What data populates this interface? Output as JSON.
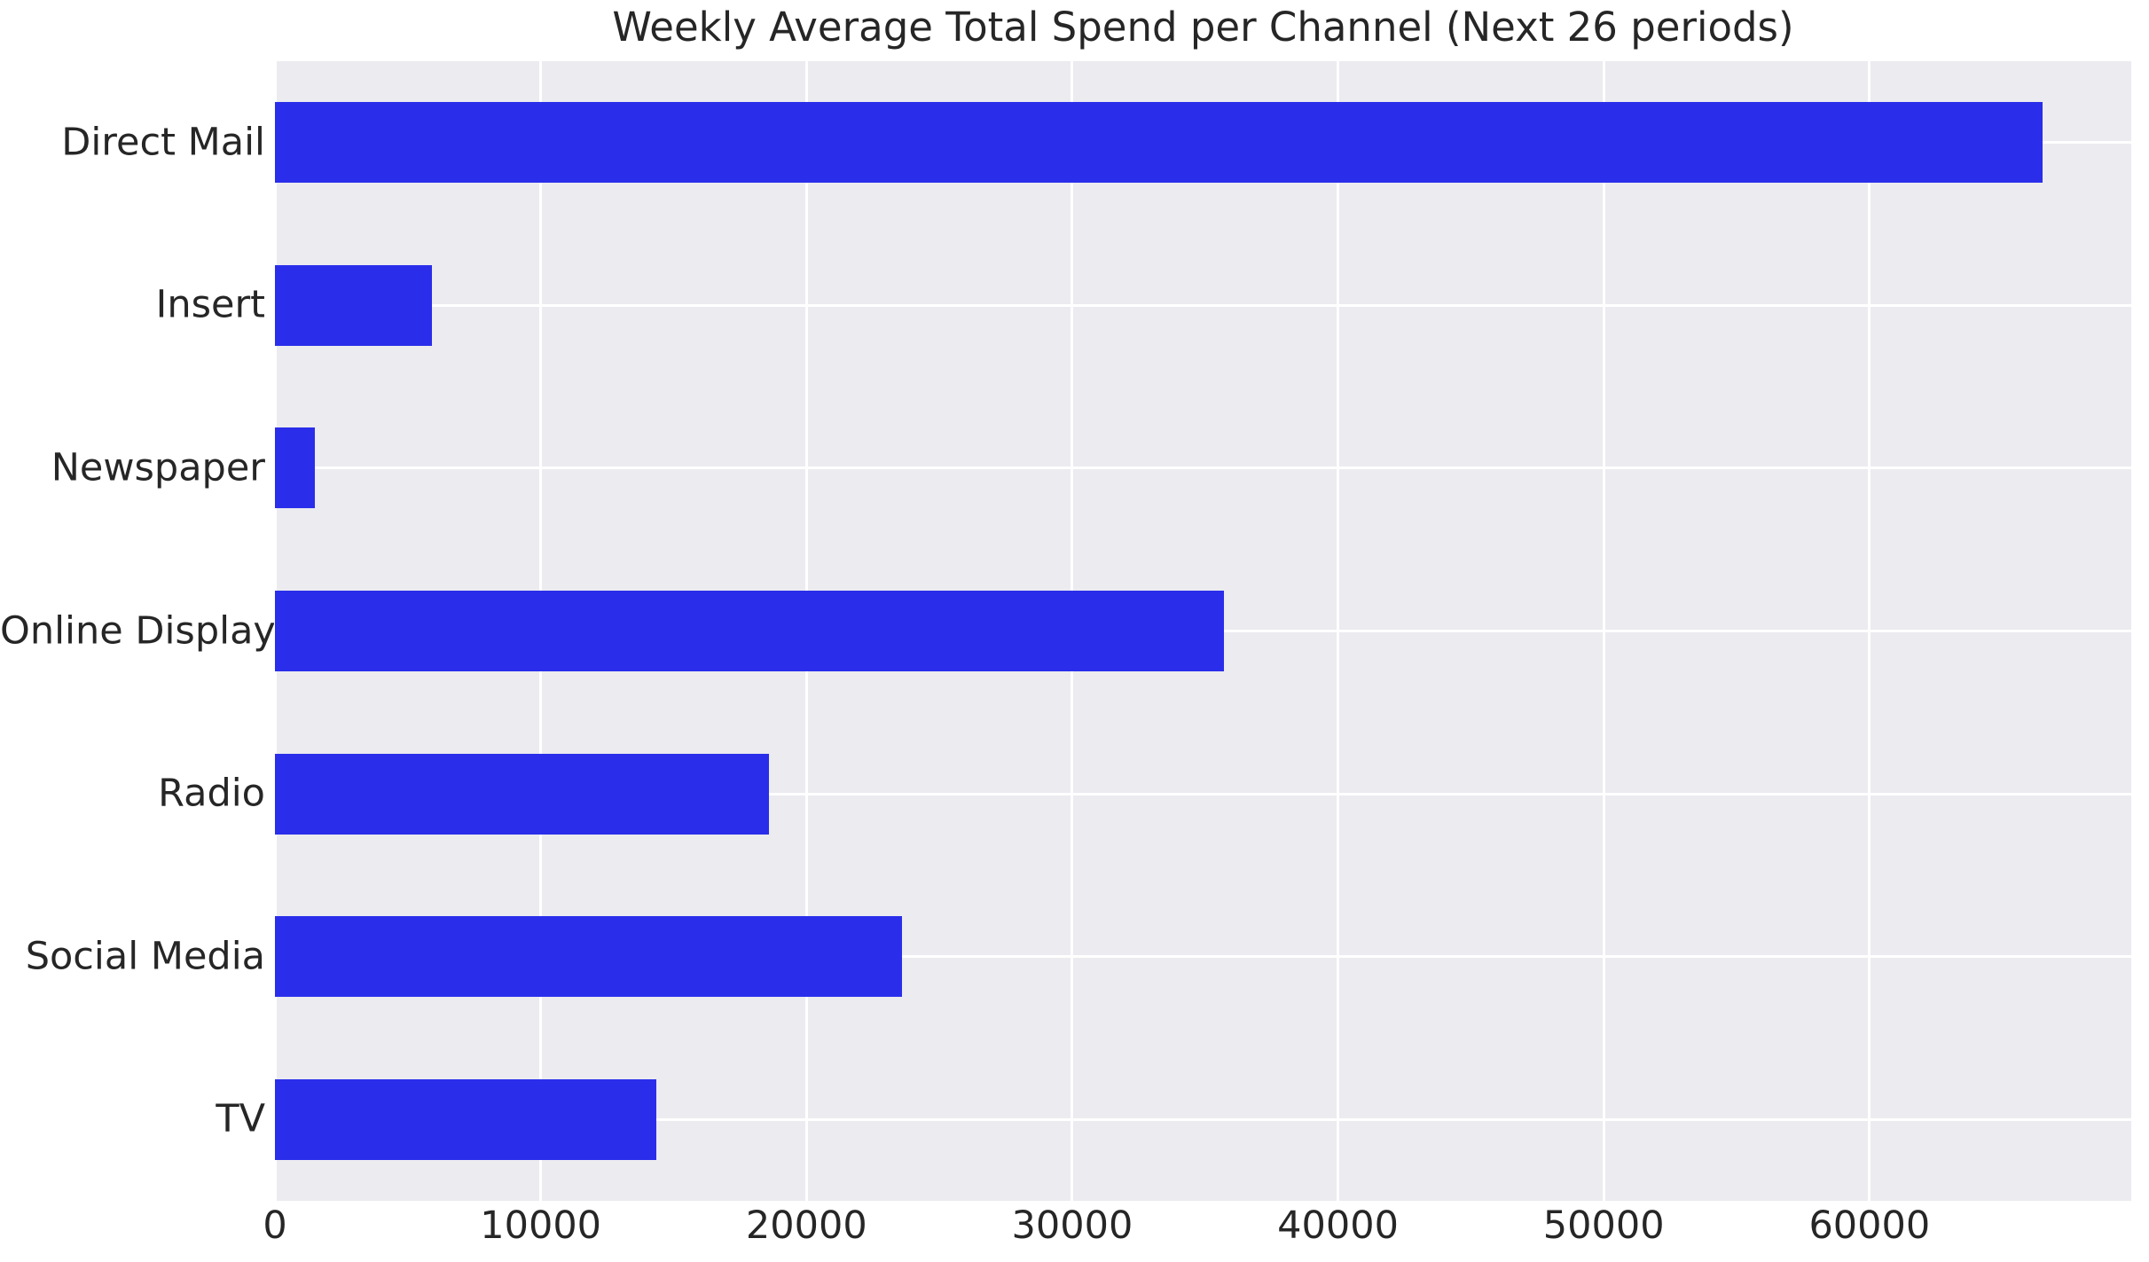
{
  "chart_data": {
    "type": "bar",
    "orientation": "horizontal",
    "title": "Weekly Average Total Spend per Channel (Next 26 periods)",
    "categories": [
      "Direct Mail",
      "Insert",
      "Newspaper",
      "Online Display",
      "Radio",
      "Social Media",
      "TV"
    ],
    "values": [
      66500,
      5900,
      1500,
      35700,
      18600,
      23600,
      14350
    ],
    "x_ticks": [
      0,
      10000,
      20000,
      30000,
      40000,
      50000,
      60000
    ],
    "x_tick_labels": [
      "0",
      "10000",
      "20000",
      "30000",
      "40000",
      "50000",
      "60000"
    ],
    "xlim": [
      0,
      69850
    ],
    "xlabel": "",
    "ylabel": "",
    "grid": true,
    "legend": false,
    "colors": {
      "bar": "#2a2eea",
      "plot_background": "#ebebf0",
      "gridline": "#ffffff",
      "text": "#262626",
      "figure_background": "#ffffff"
    }
  }
}
